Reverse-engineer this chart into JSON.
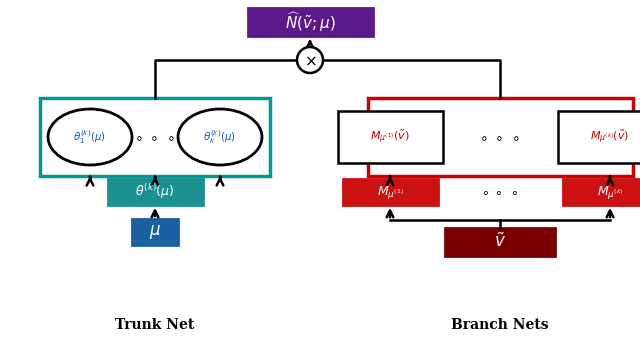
{
  "fig_width": 6.4,
  "fig_height": 3.47,
  "bg_color": "#ffffff",
  "purple_box_color": "#5b1a8a",
  "teal_big_box_color": "#009999",
  "teal_mid_box_color": "#1a9090",
  "blue_input_color": "#1a5fa0",
  "red_big_box_color": "#cc0000",
  "red_small_box_color": "#cc1111",
  "dark_red_input_color": "#7a0000",
  "trunk_label": "Trunk Net",
  "branch_label": "Branch Nets"
}
